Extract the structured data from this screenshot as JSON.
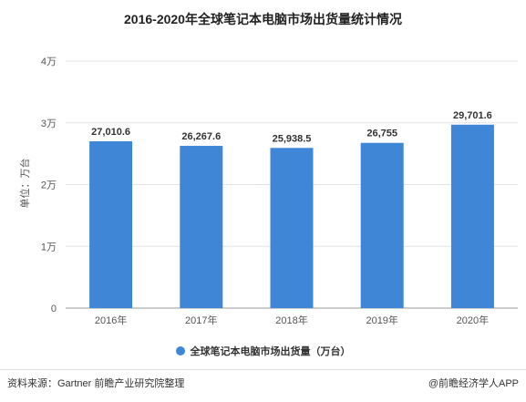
{
  "chart_data": {
    "type": "bar",
    "title": "2016-2020年全球笔记本电脑市场出货量统计情况",
    "ylabel": "单位：万台",
    "categories": [
      "2016年",
      "2017年",
      "2018年",
      "2019年",
      "2020年"
    ],
    "values": [
      27010.6,
      26267.6,
      25938.5,
      26755,
      29701.6
    ],
    "value_labels": [
      "27,010.6",
      "26,267.6",
      "25,938.5",
      "26,755",
      "29,701.6"
    ],
    "ylim": [
      0,
      40000
    ],
    "yticks": [
      0,
      10000,
      20000,
      30000,
      40000
    ],
    "ytick_labels": [
      "0",
      "1万",
      "2万",
      "3万",
      "4万"
    ],
    "grid": true,
    "legend_position": "bottom",
    "series_name": "全球笔记本电脑市场出货量（万台）",
    "color": "#3f87d6"
  },
  "footer": {
    "source": "资料来源：Gartner 前瞻产业研究院整理",
    "brand": "@前瞻经济学人APP"
  }
}
